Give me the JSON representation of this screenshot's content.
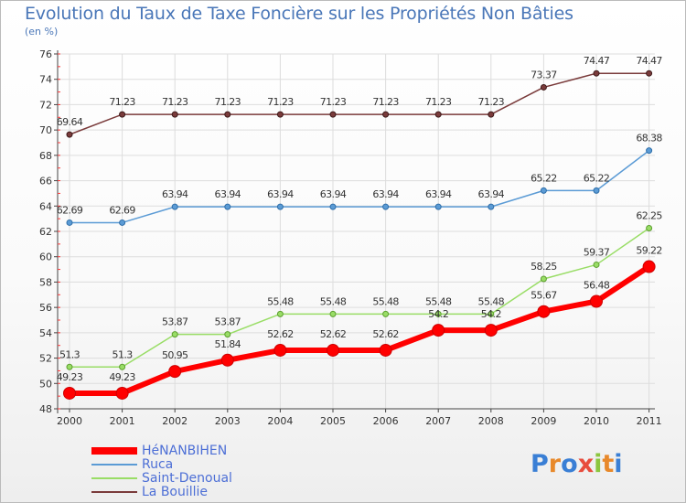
{
  "chart_data": {
    "type": "line",
    "title": "Evolution du Taux de Taxe Foncière sur les Propriétés Non Bâties",
    "ylabel": "(en %)",
    "xlabel": "",
    "ylim": [
      48,
      76
    ],
    "yticks": [
      48,
      50,
      52,
      54,
      56,
      58,
      60,
      62,
      64,
      66,
      68,
      70,
      72,
      74,
      76
    ],
    "categories": [
      "2000",
      "2001",
      "2002",
      "2003",
      "2004",
      "2005",
      "2006",
      "2007",
      "2008",
      "2009",
      "2010",
      "2011"
    ],
    "grid": true,
    "legend_position": "bottom-left",
    "series": [
      {
        "name": "HéNANBIHEN",
        "color": "#ff0000",
        "values": [
          49.23,
          49.23,
          50.95,
          51.84,
          52.62,
          52.62,
          52.62,
          54.2,
          54.2,
          55.67,
          56.48,
          59.22
        ],
        "labels": [
          "49.23",
          "49.23",
          "50.95",
          "51.84",
          "52.62",
          "52.62",
          "52.62",
          "54.2",
          "54.2",
          "55.67",
          "56.48",
          "59.22"
        ]
      },
      {
        "name": "Ruca",
        "color": "#5b9bd5",
        "values": [
          62.69,
          62.69,
          63.94,
          63.94,
          63.94,
          63.94,
          63.94,
          63.94,
          63.94,
          65.22,
          65.22,
          68.38
        ],
        "labels": [
          "62.69",
          "62.69",
          "63.94",
          "63.94",
          "63.94",
          "63.94",
          "63.94",
          "63.94",
          "63.94",
          "65.22",
          "65.22",
          "68.38"
        ]
      },
      {
        "name": "Saint-Denoual",
        "color": "#99dd66",
        "values": [
          51.3,
          51.3,
          53.87,
          53.87,
          55.48,
          55.48,
          55.48,
          55.48,
          55.48,
          58.25,
          59.37,
          62.25
        ],
        "labels": [
          "51.3",
          "51.3",
          "53.87",
          "53.87",
          "55.48",
          "55.48",
          "55.48",
          "55.48",
          "55.48",
          "58.25",
          "59.37",
          "62.25"
        ]
      },
      {
        "name": "La Bouillie",
        "color": "#7a3b3b",
        "values": [
          69.64,
          71.23,
          71.23,
          71.23,
          71.23,
          71.23,
          71.23,
          71.23,
          71.23,
          73.37,
          74.47,
          74.47
        ],
        "labels": [
          "69.64",
          "71.23",
          "71.23",
          "71.23",
          "71.23",
          "71.23",
          "71.23",
          "71.23",
          "71.23",
          "73.37",
          "74.47",
          "74.47"
        ]
      }
    ]
  },
  "logo": {
    "letters": [
      "P",
      "r",
      "o",
      "x",
      "i",
      "t",
      "i"
    ],
    "colors": [
      "#3a7fd5",
      "#e8892b",
      "#3a7fd5",
      "#e84c3d",
      "#8cc63f",
      "#e8892b",
      "#3a7fd5"
    ]
  }
}
